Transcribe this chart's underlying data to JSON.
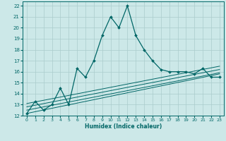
{
  "xlabel": "Humidex (Indice chaleur)",
  "background_color": "#cce8e8",
  "grid_color": "#aacccc",
  "line_color": "#006666",
  "xlim": [
    -0.5,
    23.5
  ],
  "ylim": [
    12,
    22.4
  ],
  "xticks": [
    0,
    1,
    2,
    3,
    4,
    5,
    6,
    7,
    8,
    9,
    10,
    11,
    12,
    13,
    14,
    15,
    16,
    17,
    18,
    19,
    20,
    21,
    22,
    23
  ],
  "yticks": [
    12,
    13,
    14,
    15,
    16,
    17,
    18,
    19,
    20,
    21,
    22
  ],
  "main_x": [
    0,
    1,
    2,
    3,
    4,
    5,
    6,
    7,
    8,
    9,
    10,
    11,
    12,
    13,
    14,
    15,
    16,
    17,
    18,
    19,
    20,
    21,
    22,
    23
  ],
  "main_y": [
    12.2,
    13.3,
    12.5,
    13.0,
    14.5,
    13.0,
    16.3,
    15.5,
    17.0,
    19.3,
    21.0,
    20.0,
    22.0,
    19.3,
    18.0,
    17.0,
    16.2,
    16.0,
    16.0,
    16.0,
    15.8,
    16.3,
    15.5,
    15.5
  ],
  "ref_lines": [
    {
      "x": [
        0,
        23
      ],
      "y": [
        12.2,
        15.8
      ]
    },
    {
      "x": [
        0,
        23
      ],
      "y": [
        12.5,
        15.9
      ]
    },
    {
      "x": [
        0,
        23
      ],
      "y": [
        12.8,
        16.2
      ]
    },
    {
      "x": [
        0,
        23
      ],
      "y": [
        13.1,
        16.5
      ]
    }
  ]
}
